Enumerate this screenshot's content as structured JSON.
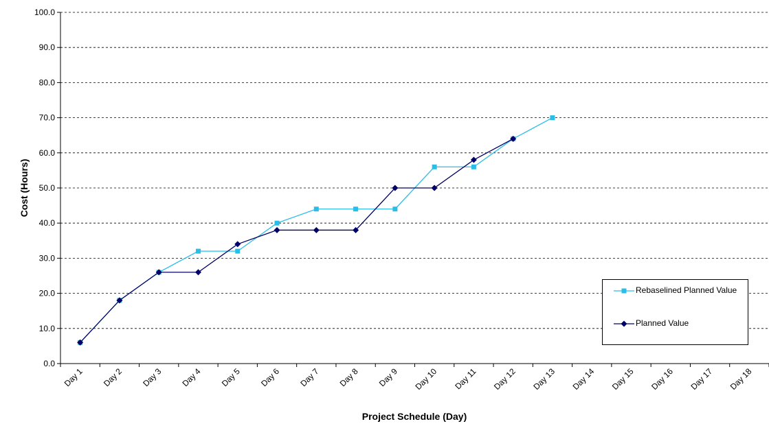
{
  "chart_data": {
    "type": "line",
    "y_label": "Cost (Hours)",
    "x_label": "Project Schedule (Day)",
    "categories": [
      "Day 1",
      "Day 2",
      "Day 3",
      "Day 4",
      "Day 5",
      "Day 6",
      "Day 7",
      "Day 8",
      "Day 9",
      "Day 10",
      "Day 11",
      "Day 12",
      "Day 13",
      "Day 14",
      "Day 15",
      "Day 16",
      "Day 17",
      "Day 18"
    ],
    "series": [
      {
        "name": "Rebaselined Planned Value",
        "color": "#29bde8",
        "marker": "square",
        "values": [
          6,
          18,
          26,
          32,
          32,
          40,
          44,
          44,
          44,
          56,
          56,
          64,
          70,
          null,
          null,
          null,
          null,
          null
        ]
      },
      {
        "name": "Planned Value",
        "color": "#000066",
        "marker": "diamond",
        "values": [
          6,
          18,
          26,
          26,
          34,
          38,
          38,
          38,
          50,
          50,
          58,
          64,
          null,
          null,
          null,
          null,
          null,
          null
        ]
      }
    ],
    "ylim": [
      0,
      100
    ],
    "yticks": [
      {
        "value": 0,
        "label": "0.0"
      },
      {
        "value": 10,
        "label": "10.0"
      },
      {
        "value": 20,
        "label": "20.0"
      },
      {
        "value": 30,
        "label": "30.0"
      },
      {
        "value": 40,
        "label": "40.0"
      },
      {
        "value": 50,
        "label": "50.0"
      },
      {
        "value": 60,
        "label": "60.0"
      },
      {
        "value": 70,
        "label": "70.0"
      },
      {
        "value": 80,
        "label": "80.0"
      },
      {
        "value": 90,
        "label": "90.0"
      },
      {
        "value": 100,
        "label": "100.0"
      }
    ],
    "grid": true,
    "legend": "lower right"
  }
}
